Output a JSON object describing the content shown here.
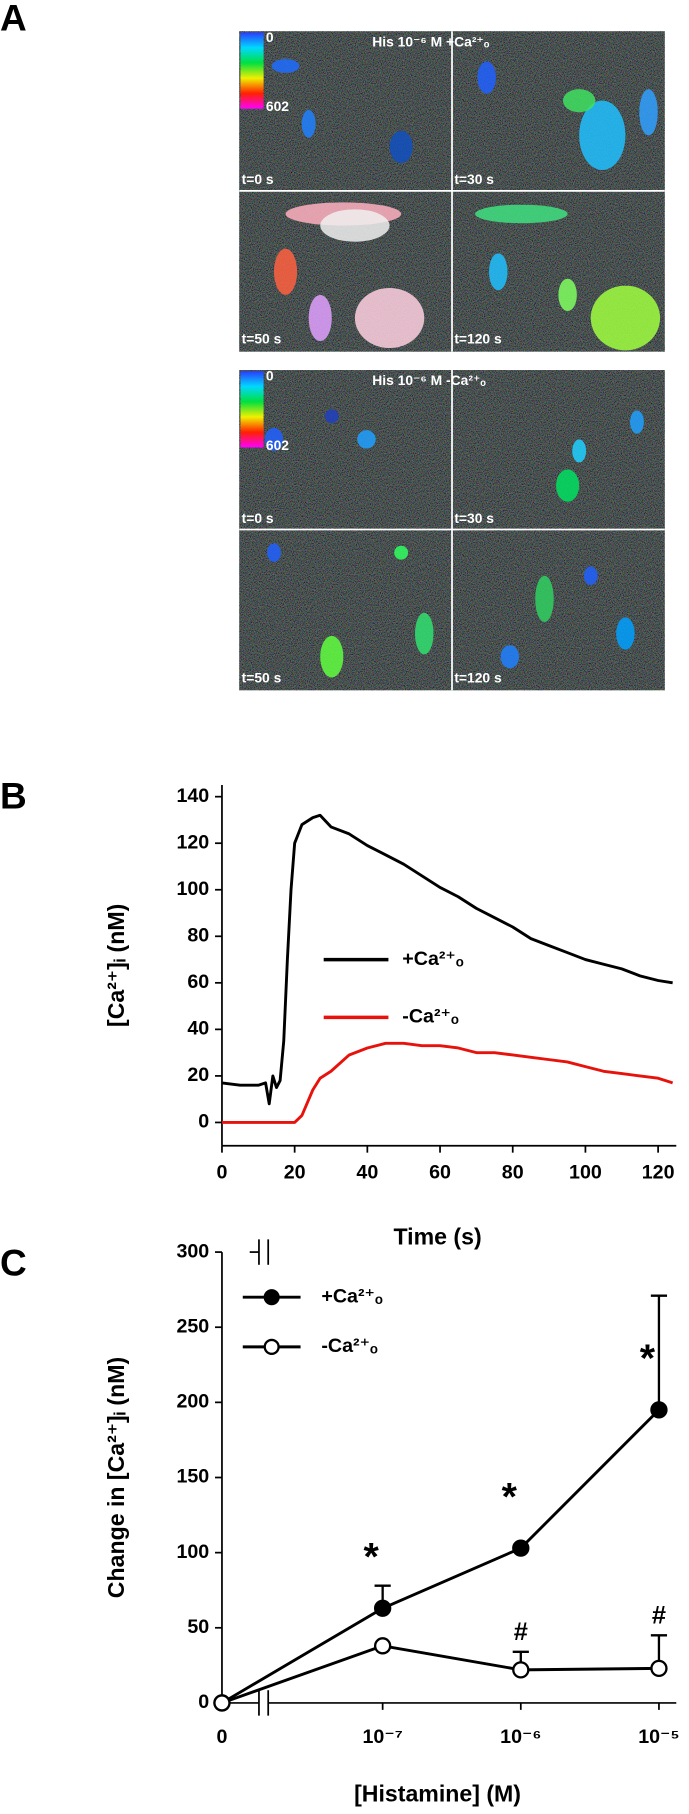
{
  "panel_a": {
    "label": "A",
    "groups": [
      {
        "title": "His 10⁻⁶ M +Ca²⁺ₒ",
        "scale_min": "0",
        "scale_max": "602",
        "frames": [
          "t=0 s",
          "t=30 s",
          "t=50 s",
          "t=120 s"
        ]
      },
      {
        "title": "His 10⁻⁶ M -Ca²⁺ₒ",
        "scale_min": "0",
        "scale_max": "602",
        "frames": [
          "t=0 s",
          "t=30 s",
          "t=50 s",
          "t=120 s"
        ]
      }
    ]
  },
  "chart_data": [
    {
      "type": "line",
      "panel_label": "B",
      "xlabel": "Time (s)",
      "ylabel": "[Ca²⁺]ᵢ (nM)",
      "x": [
        0,
        5,
        10,
        12,
        13,
        14,
        15,
        16,
        17,
        18,
        19,
        20,
        22,
        25,
        27,
        30,
        35,
        40,
        45,
        50,
        55,
        60,
        65,
        70,
        75,
        80,
        85,
        90,
        95,
        100,
        105,
        110,
        115,
        120,
        124
      ],
      "series": [
        {
          "name": "+Ca²⁺ₒ",
          "color": "#000000",
          "values": [
            17,
            16,
            16,
            17,
            8,
            20,
            15,
            18,
            35,
            70,
            100,
            120,
            128,
            131,
            132,
            127,
            124,
            119,
            115,
            111,
            106,
            101,
            97,
            92,
            88,
            84,
            79,
            76,
            73,
            70,
            68,
            66,
            63,
            61,
            60
          ]
        },
        {
          "name": "-Ca²⁺ₒ",
          "color": "#e8120c",
          "values": [
            0,
            0,
            0,
            0,
            0,
            0,
            0,
            0,
            0,
            0,
            0,
            0,
            3,
            14,
            19,
            22,
            29,
            32,
            34,
            34,
            33,
            33,
            32,
            30,
            30,
            29,
            28,
            27,
            26,
            24,
            22,
            21,
            20,
            19,
            17
          ]
        }
      ],
      "xlim": [
        0,
        125
      ],
      "xticks": [
        0,
        20,
        40,
        60,
        80,
        100,
        120
      ],
      "ylim": [
        -10,
        145
      ],
      "yticks": [
        0,
        20,
        40,
        60,
        80,
        100,
        120,
        140
      ],
      "legend": "center"
    },
    {
      "type": "errorline",
      "panel_label": "C",
      "xlabel": "[Histamine] (M)",
      "ylabel": "Change in [Ca²⁺]ᵢ (nM)",
      "categories": [
        "0",
        "10⁻⁷",
        "10⁻⁶",
        "10⁻⁵"
      ],
      "axis_break": true,
      "series": [
        {
          "name": "+Ca²⁺ₒ",
          "color": "#000000",
          "marker_fill": "#000000",
          "values": [
            0,
            63,
            103,
            195
          ],
          "errors": [
            null,
            15,
            null,
            76
          ]
        },
        {
          "name": "-Ca²⁺ₒ",
          "color": "#000000",
          "marker_fill": "#ffffff",
          "values": [
            0,
            38,
            22,
            23
          ],
          "errors": [
            null,
            null,
            12,
            22
          ]
        }
      ],
      "annotations": [
        {
          "text": "*",
          "category": 1,
          "series": 0
        },
        {
          "text": "*",
          "category": 2,
          "series": 0
        },
        {
          "text": "*",
          "category": 3,
          "series": 0
        },
        {
          "text": "#",
          "category": 2,
          "series": 1
        },
        {
          "text": "#",
          "category": 3,
          "series": 1
        }
      ],
      "ylim": [
        0,
        300
      ],
      "yticks": [
        0,
        50,
        100,
        150,
        200,
        250,
        300
      ],
      "legend": "upper left"
    }
  ]
}
